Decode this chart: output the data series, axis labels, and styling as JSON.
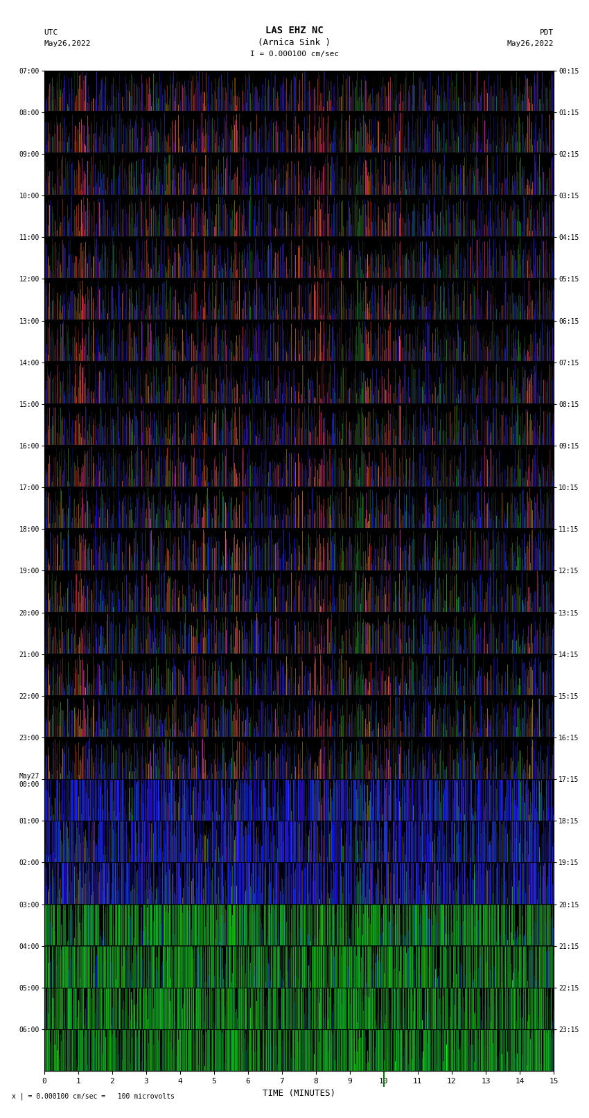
{
  "title_line1": "LAS EHZ NC",
  "title_line2": "(Arnica Sink )",
  "scale_label": "I = 0.000100 cm/sec",
  "left_label_line1": "UTC",
  "left_label_line2": "May26,2022",
  "right_label_line1": "PDT",
  "right_label_line2": "May26,2022",
  "bottom_label": "TIME (MINUTES)",
  "footer_label": "x | = 0.000100 cm/sec =   100 microvolts",
  "left_yticks": [
    "07:00",
    "08:00",
    "09:00",
    "10:00",
    "11:00",
    "12:00",
    "13:00",
    "14:00",
    "15:00",
    "16:00",
    "17:00",
    "18:00",
    "19:00",
    "20:00",
    "21:00",
    "22:00",
    "23:00",
    "May27\n00:00",
    "01:00",
    "02:00",
    "03:00",
    "04:00",
    "05:00",
    "06:00"
  ],
  "right_yticks": [
    "00:15",
    "01:15",
    "02:15",
    "03:15",
    "04:15",
    "05:15",
    "06:15",
    "07:15",
    "08:15",
    "09:15",
    "10:15",
    "11:15",
    "12:15",
    "13:15",
    "14:15",
    "15:15",
    "16:15",
    "17:15",
    "18:15",
    "19:15",
    "20:15",
    "21:15",
    "22:15",
    "23:15"
  ],
  "xticks": [
    0,
    1,
    2,
    3,
    4,
    5,
    6,
    7,
    8,
    9,
    10,
    11,
    12,
    13,
    14,
    15
  ],
  "xlim": [
    0,
    15
  ],
  "n_rows": 24,
  "n_cols": 900,
  "bg_color": "#000000",
  "fig_bg": "#ffffff",
  "seed": 42
}
